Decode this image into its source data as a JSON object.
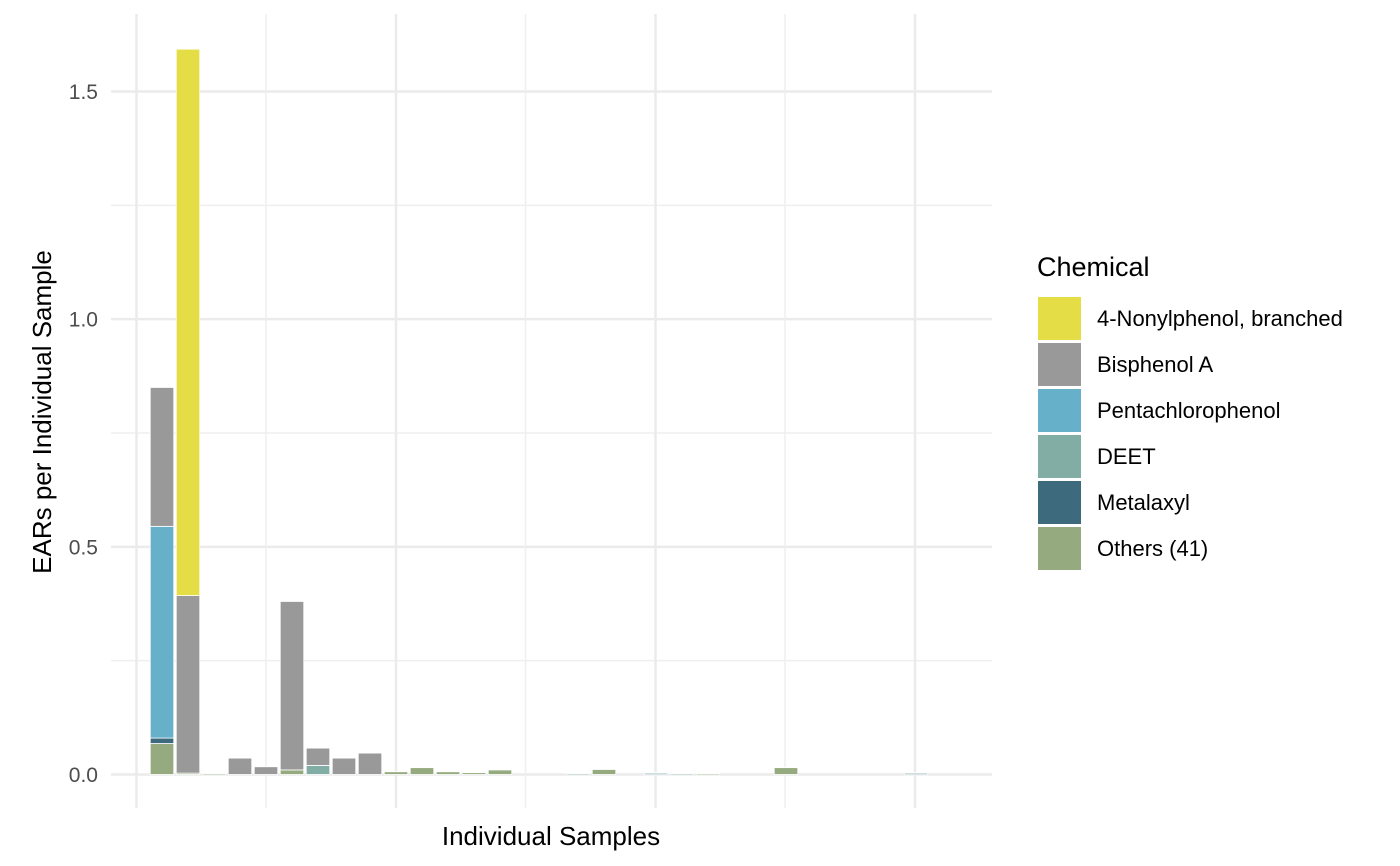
{
  "chart_data": {
    "type": "bar",
    "stacked": true,
    "title": "",
    "xlabel": "Individual Samples",
    "ylabel": "EARs per Individual Sample",
    "ylim": [
      -0.07,
      1.65
    ],
    "y_ticks": [
      0.0,
      0.5,
      1.0,
      1.5
    ],
    "y_tick_labels": [
      "0.0",
      "0.5",
      "1.0",
      "1.5"
    ],
    "x_tick_labels": [],
    "grid": true,
    "legend_position": "right",
    "legend_title": "Chemical",
    "series": [
      {
        "name": "4-Nonylphenol, branched",
        "color": "#E5DD45",
        "values": [
          0,
          1.2,
          0,
          0,
          0,
          0,
          0,
          0,
          0,
          0,
          0,
          0,
          0,
          0,
          0,
          0,
          0,
          0,
          0,
          0,
          0,
          0,
          0,
          0,
          0,
          0,
          0,
          0,
          0,
          0
        ]
      },
      {
        "name": "Bisphenol A",
        "color": "#999999",
        "values": [
          0.305,
          0.39,
          0,
          0.036,
          0.017,
          0.37,
          0.038,
          0.036,
          0.047,
          0,
          0,
          0,
          0,
          0,
          0,
          0,
          0,
          0,
          0,
          0,
          0,
          0,
          0,
          0,
          0,
          0,
          0,
          0,
          0,
          0
        ]
      },
      {
        "name": "Pentachlorophenol",
        "color": "#67B0CA",
        "values": [
          0.465,
          0,
          0,
          0,
          0,
          0,
          0,
          0,
          0,
          0,
          0,
          0,
          0,
          0,
          0,
          0,
          0,
          0,
          0,
          0,
          0,
          0,
          0,
          0,
          0,
          0,
          0,
          0,
          0,
          0
        ]
      },
      {
        "name": "DEET",
        "color": "#81ADA5",
        "values": [
          0,
          0,
          0,
          0,
          0,
          0,
          0.02,
          0,
          0,
          0,
          0,
          0,
          0,
          0,
          0,
          0,
          0.002,
          0,
          0,
          0.002,
          0.002,
          0,
          0,
          0,
          0,
          0,
          0,
          0,
          0,
          0.002
        ]
      },
      {
        "name": "Metalaxyl",
        "color": "#3D6B7D",
        "values": [
          0.012,
          0,
          0,
          0,
          0,
          0,
          0,
          0,
          0,
          0,
          0,
          0,
          0,
          0,
          0,
          0,
          0,
          0,
          0,
          0.002,
          0,
          0,
          0,
          0,
          0,
          0,
          0,
          0,
          0,
          0.002
        ]
      },
      {
        "name": "Others (41)",
        "color": "#95AA7F",
        "values": [
          0.068,
          0.003,
          0.002,
          0,
          0,
          0.01,
          0,
          0,
          0,
          0.006,
          0.015,
          0.006,
          0.004,
          0.01,
          0,
          0,
          0,
          0.011,
          0,
          0,
          0,
          0.002,
          0,
          0,
          0.015,
          0,
          0,
          0,
          0,
          0
        ]
      }
    ]
  }
}
